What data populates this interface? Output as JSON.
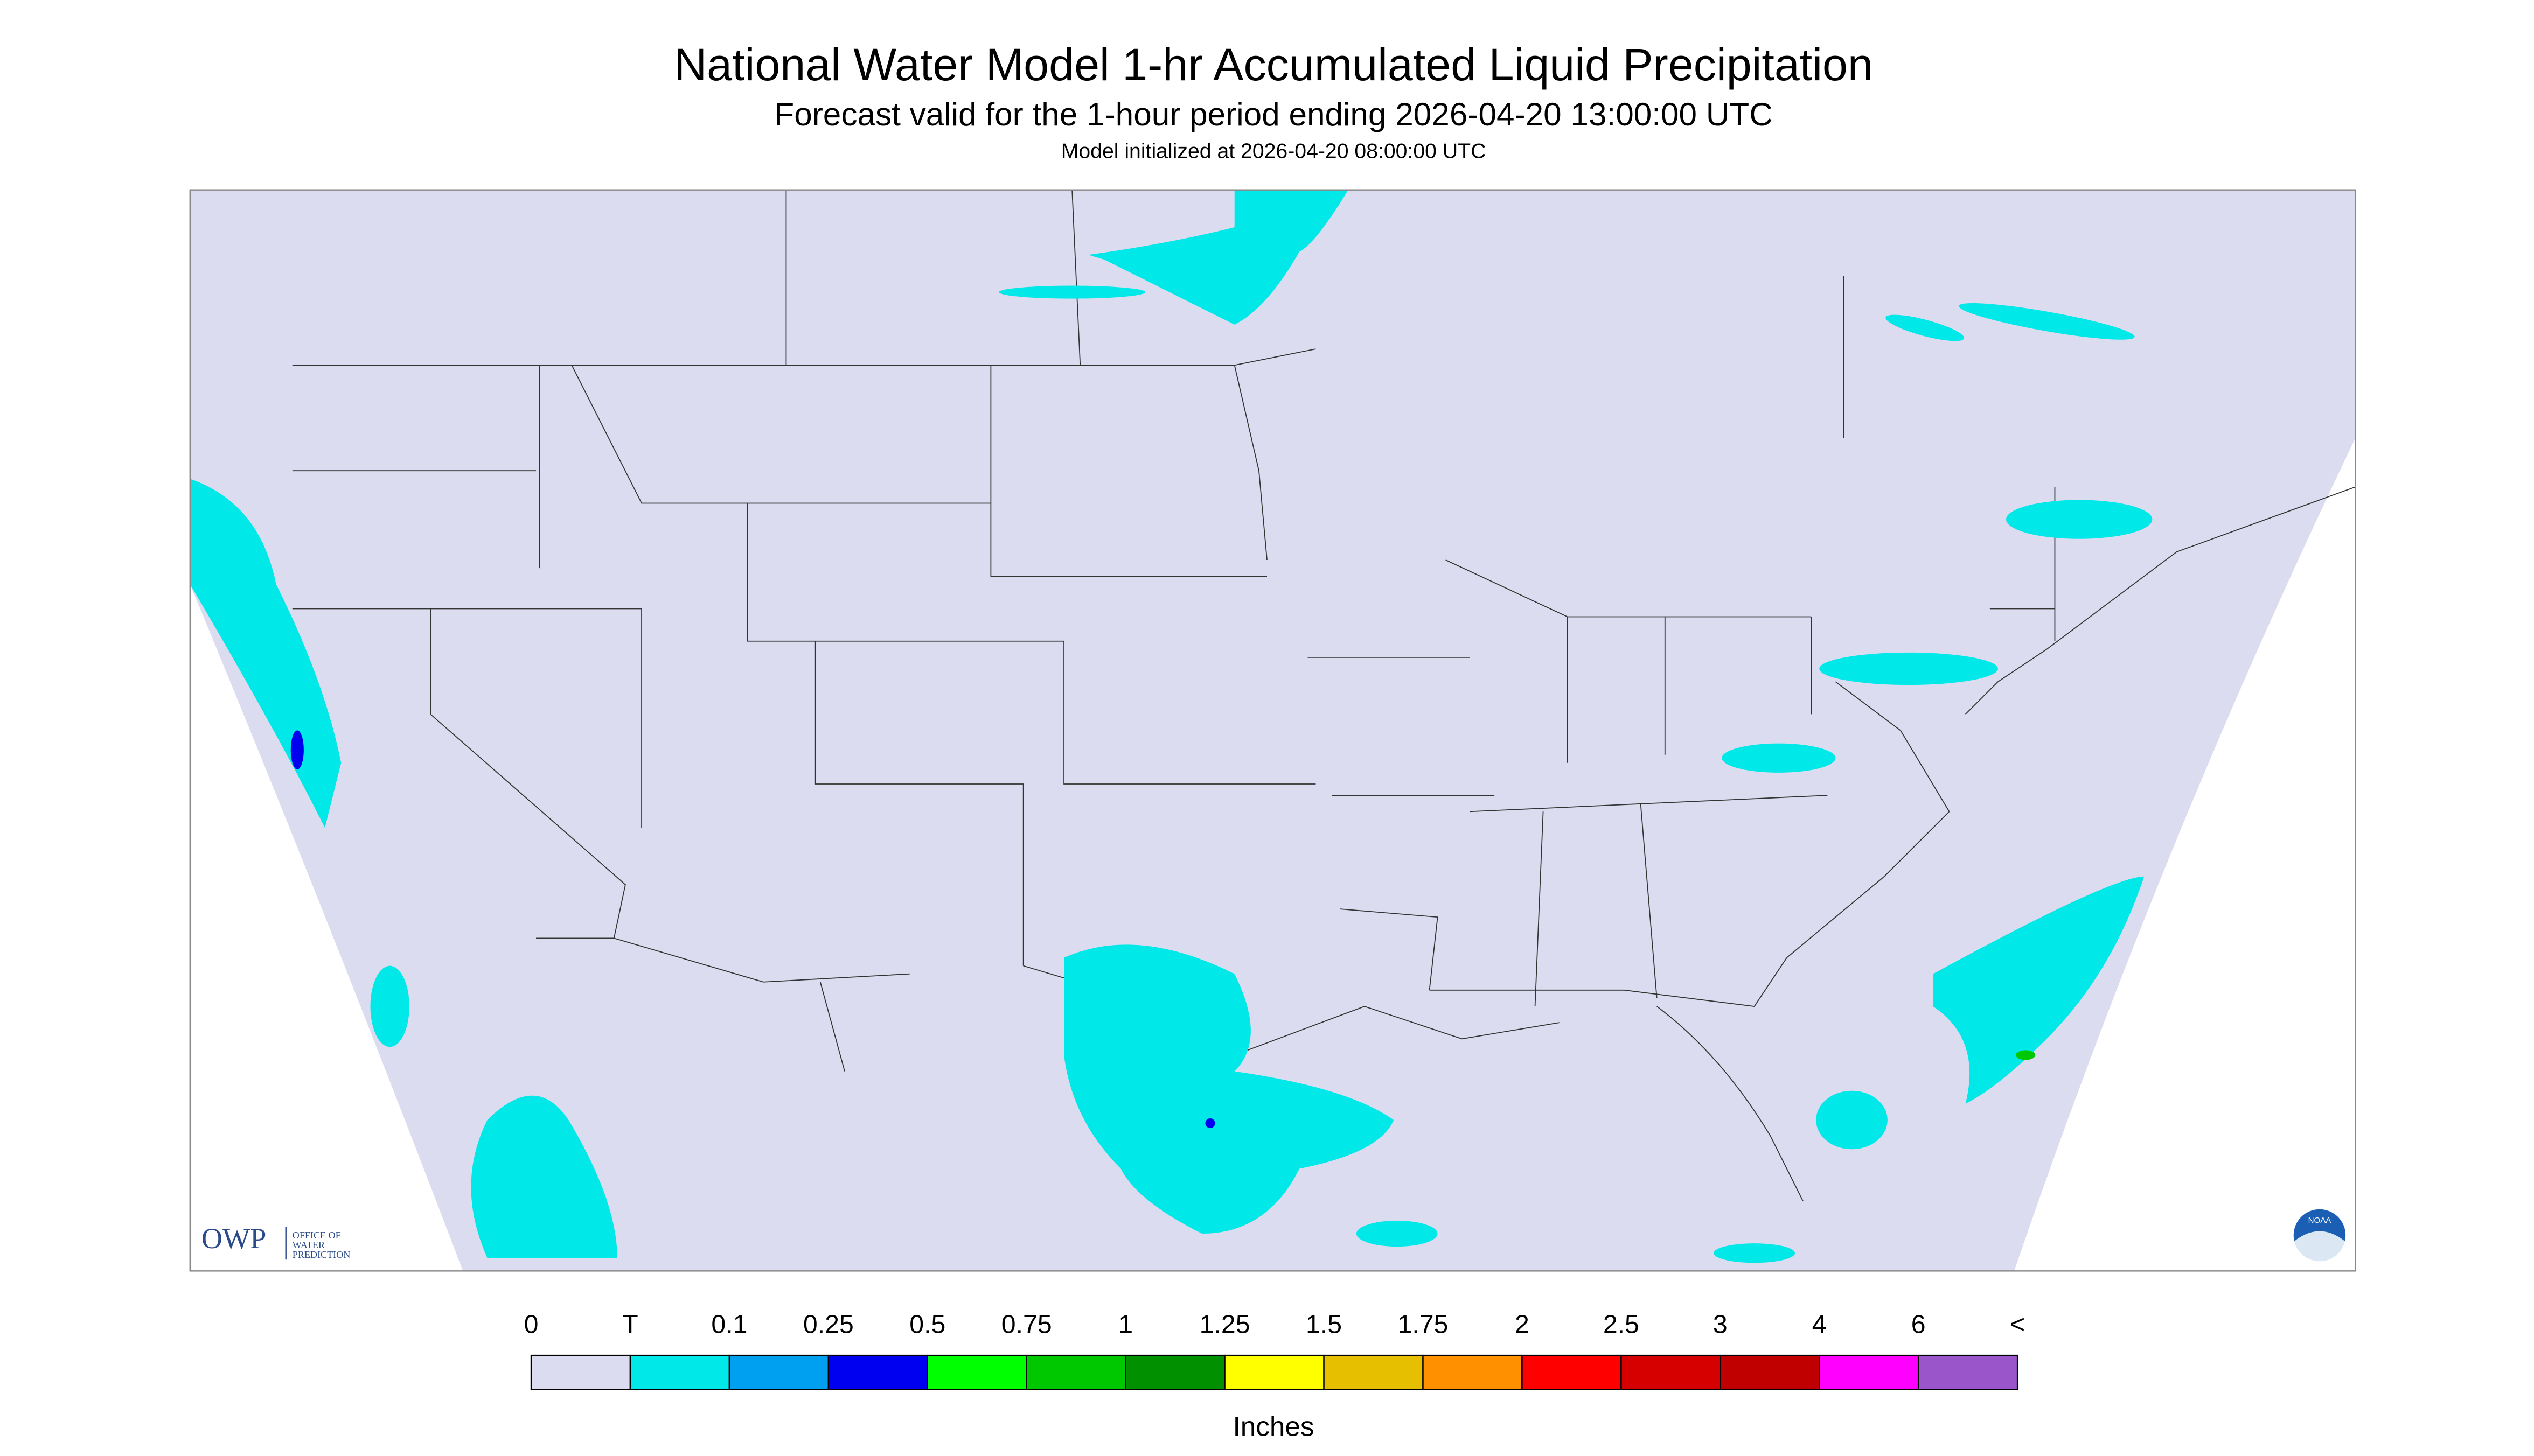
{
  "header": {
    "title": "National Water Model 1-hr Accumulated Liquid Precipitation",
    "subtitle": "Forecast valid for the 1-hour period ending 2026-04-20 13:00:00 UTC",
    "note": "Model initialized at 2026-04-20 08:00:00 UTC"
  },
  "logo": {
    "name": "OWP",
    "lines": [
      "OFFICE OF",
      "WATER",
      "PREDICTION"
    ],
    "agency": "NOAA"
  },
  "legend": {
    "labels": [
      "0",
      "T",
      "0.1",
      "0.25",
      "0.5",
      "0.75",
      "1",
      "1.25",
      "1.5",
      "1.75",
      "2",
      "2.5",
      "3",
      "4",
      "6",
      "<"
    ],
    "colors": [
      "#dcdcf0",
      "#00e8e8",
      "#00a0f0",
      "#0000f0",
      "#00ff00",
      "#00c800",
      "#009000",
      "#ffff00",
      "#e6c000",
      "#ff9000",
      "#ff0000",
      "#d60000",
      "#c00000",
      "#ff00ff",
      "#9955c9"
    ],
    "unit": "Inches"
  }
}
